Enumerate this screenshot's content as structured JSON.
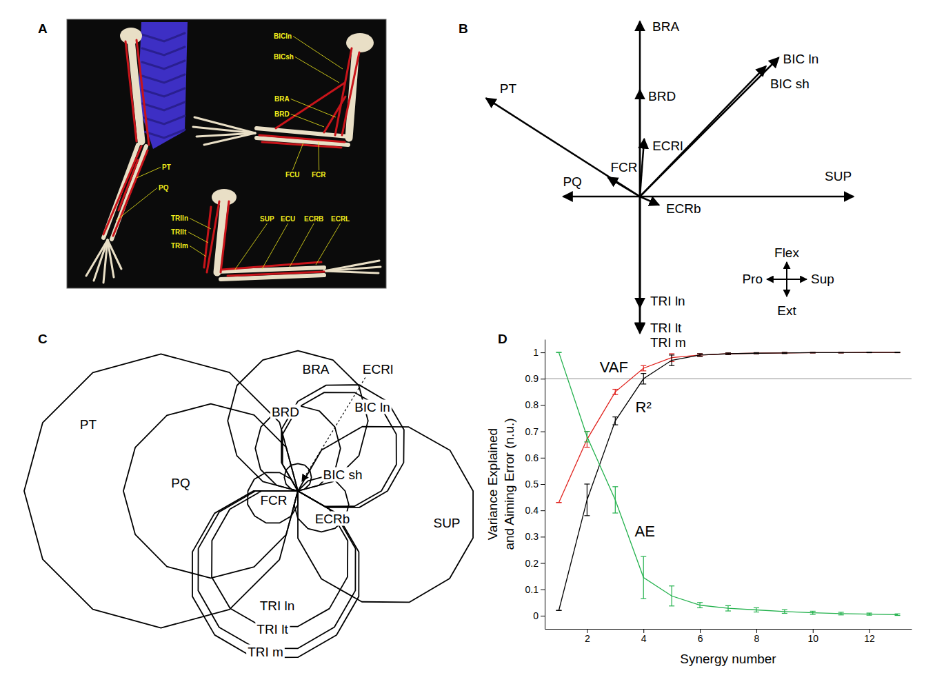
{
  "panel_letters": [
    "A",
    "B",
    "C",
    "D"
  ],
  "panel_a": {
    "labels": [
      "BICln",
      "BICsh",
      "BRA",
      "BRD",
      "FCU",
      "FCR",
      "PT",
      "PQ",
      "TRIln",
      "TRIlt",
      "TRIm",
      "SUP",
      "ECU",
      "ECRB",
      "ECRL"
    ]
  },
  "panel_b": {
    "vectors": [
      {
        "label": "BRA",
        "x": 0,
        "y": 0.82
      },
      {
        "label": "BRD",
        "x": 0,
        "y": 0.5
      },
      {
        "label": "BIC ln",
        "x": 0.65,
        "y": 0.65
      },
      {
        "label": "BIC sh",
        "x": 0.59,
        "y": 0.61
      },
      {
        "label": "PT",
        "x": -0.72,
        "y": 0.46
      },
      {
        "label": "PQ",
        "x": -0.36,
        "y": 0
      },
      {
        "label": "SUP",
        "x": 1.0,
        "y": 0
      },
      {
        "label": "ECRl",
        "x": 0.02,
        "y": 0.27
      },
      {
        "label": "FCR",
        "x": -0.15,
        "y": 0.09
      },
      {
        "label": "ECRb",
        "x": 0.09,
        "y": -0.04
      },
      {
        "label": "TRI ln",
        "x": 0,
        "y": -0.52
      },
      {
        "label": "TRI lt",
        "x": 0,
        "y": -0.635
      },
      {
        "label": "TRI m",
        "x": 0,
        "y": -0.64
      }
    ],
    "compass": {
      "up": "Flex",
      "down": "Ext",
      "left": "Pro",
      "right": "Sup"
    }
  },
  "panel_c": {
    "angles": [
      0,
      15,
      30,
      45,
      60,
      75,
      90,
      105,
      120,
      135,
      150,
      165,
      180,
      195,
      210,
      225,
      240,
      255,
      270,
      285,
      300,
      315,
      330,
      345
    ],
    "muscles": [
      {
        "label": "PT",
        "values": [
          0,
          0,
          0,
          0,
          0,
          0,
          0,
          104,
          200,
          283,
          346,
          386,
          400,
          386,
          346,
          283,
          200,
          104,
          0,
          0,
          0,
          0,
          0,
          0
        ]
      },
      {
        "label": "PQ",
        "values": [
          0,
          0,
          0,
          0,
          0,
          0,
          0,
          66,
          128,
          180,
          221,
          246,
          255,
          246,
          221,
          180,
          128,
          66,
          0,
          0,
          0,
          0,
          0,
          0
        ]
      },
      {
        "label": "SUP",
        "values": [
          256,
          230,
          187,
          133,
          69,
          0,
          0,
          0,
          0,
          0,
          0,
          0,
          0,
          0,
          0,
          0,
          0,
          0,
          69,
          133,
          187,
          230,
          256,
          265
        ]
      },
      {
        "label": "BRA",
        "values": [
          0,
          53,
          103,
          145,
          178,
          198,
          205,
          198,
          178,
          145,
          103,
          53,
          0,
          0,
          0,
          0,
          0,
          0,
          0,
          0,
          0,
          0,
          0,
          0
        ]
      },
      {
        "label": "BRD",
        "values": [
          0,
          32,
          63,
          88,
          108,
          121,
          125,
          121,
          108,
          88,
          63,
          32,
          0,
          0,
          0,
          0,
          0,
          0,
          0,
          0,
          0,
          0,
          0,
          0
        ]
      },
      {
        "label": "ECRl",
        "values": [
          0,
          10,
          20,
          28,
          35,
          39,
          40,
          39,
          35,
          28,
          20,
          10,
          0,
          0,
          0,
          0,
          0,
          0,
          0,
          0,
          0,
          0,
          0,
          0
        ]
      },
      {
        "label": "BIC ln",
        "values": [
          131,
          160,
          179,
          185,
          179,
          160,
          131,
          93,
          48,
          0,
          0,
          0,
          0,
          0,
          0,
          0,
          0,
          0,
          0,
          0,
          0,
          0,
          48,
          93
        ]
      },
      {
        "label": "BIC sh",
        "values": [
          122,
          149,
          166,
          172,
          166,
          149,
          122,
          86,
          45,
          0,
          0,
          0,
          0,
          0,
          0,
          0,
          0,
          0,
          0,
          0,
          0,
          0,
          45,
          86
        ]
      },
      {
        "label": "FCR",
        "values": [
          0,
          0,
          0,
          0,
          0,
          0,
          0,
          0,
          20,
          38,
          54,
          66,
          73,
          76,
          73,
          66,
          54,
          38,
          20,
          0,
          0,
          0,
          0,
          0
        ]
      },
      {
        "label": "ECRb",
        "values": [
          69,
          57,
          40,
          21,
          0,
          0,
          0,
          0,
          0,
          0,
          0,
          0,
          0,
          0,
          0,
          0,
          0,
          21,
          40,
          57,
          69,
          77,
          80,
          77
        ]
      },
      {
        "label": "TRI ln",
        "values": [
          0,
          0,
          0,
          0,
          0,
          0,
          0,
          0,
          0,
          0,
          0,
          0,
          53,
          103,
          145,
          178,
          198,
          205,
          198,
          178,
          145,
          103,
          53,
          0
        ]
      },
      {
        "label": "TRI lt",
        "values": [
          0,
          0,
          0,
          0,
          0,
          0,
          0,
          0,
          0,
          0,
          0,
          0,
          62,
          119,
          168,
          206,
          230,
          238,
          230,
          206,
          168,
          119,
          62,
          0
        ]
      },
      {
        "label": "TRI m",
        "values": [
          0,
          0,
          0,
          0,
          0,
          0,
          0,
          0,
          0,
          0,
          0,
          0,
          65,
          126,
          178,
          218,
          243,
          252,
          243,
          218,
          178,
          126,
          65,
          0
        ]
      }
    ]
  },
  "chart_data": {
    "type": "line",
    "x": [
      1,
      2,
      3,
      4,
      5,
      6,
      7,
      8,
      9,
      10,
      11,
      12,
      13
    ],
    "xlim": [
      0.5,
      13.5
    ],
    "xticks": [
      2,
      4,
      6,
      8,
      10,
      12
    ],
    "ylim": [
      -0.05,
      1.05
    ],
    "yticks": [
      0,
      0.1,
      0.2,
      0.3,
      0.4,
      0.5,
      0.6,
      0.7,
      0.8,
      0.9,
      1
    ],
    "x_label": "Synergy number",
    "y_label": "Variance Explained and Aiming Error (n.u.)",
    "reference_line": 0.9,
    "series": [
      {
        "name": "VAF",
        "color": "#e0201b",
        "values": [
          0.43,
          0.67,
          0.85,
          0.94,
          0.98,
          0.99,
          0.995,
          0.997,
          0.998,
          0.999,
          0.999,
          1.0,
          1.0
        ],
        "errors": [
          0,
          0.03,
          0.01,
          0.01,
          0.015,
          0.005,
          0.003,
          0.002,
          0.002,
          0.001,
          0.001,
          0.001,
          0.001
        ]
      },
      {
        "name": "R²",
        "color": "#000000",
        "values": [
          0.02,
          0.44,
          0.74,
          0.9,
          0.97,
          0.99,
          0.995,
          0.997,
          0.998,
          0.999,
          0.999,
          1.0,
          1.0
        ],
        "errors": [
          0,
          0.06,
          0.015,
          0.02,
          0.02,
          0.005,
          0.003,
          0.002,
          0.002,
          0.001,
          0.001,
          0.001,
          0.001
        ]
      },
      {
        "name": "AE",
        "color": "#22b14c",
        "values": [
          1.0,
          0.68,
          0.44,
          0.145,
          0.075,
          0.04,
          0.028,
          0.022,
          0.016,
          0.011,
          0.008,
          0.006,
          0.004
        ],
        "errors": [
          0,
          0.02,
          0.05,
          0.08,
          0.038,
          0.01,
          0.01,
          0.008,
          0.007,
          0.006,
          0.005,
          0.004,
          0.003
        ]
      }
    ]
  }
}
